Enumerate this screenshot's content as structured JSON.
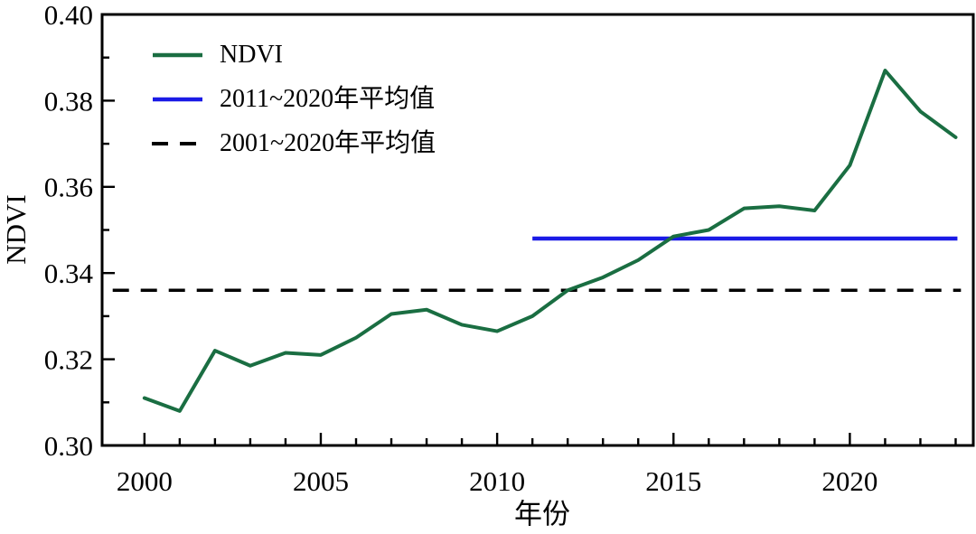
{
  "chart_data": {
    "type": "line",
    "title": "",
    "xlabel": "年份",
    "ylabel": "NDVI",
    "xlim": [
      1998.8,
      2023.5
    ],
    "ylim": [
      0.3,
      0.4
    ],
    "xticks": [
      2000,
      2005,
      2010,
      2015,
      2020
    ],
    "yticks": [
      0.3,
      0.32,
      0.34,
      0.36,
      0.38,
      0.4
    ],
    "x_minor_step": 1,
    "y_minor_step": 0.01,
    "grid": false,
    "legend_position": "upper-left-inside",
    "background_color": "#ffffff",
    "axis_color": "#000000",
    "x": [
      2000,
      2001,
      2002,
      2003,
      2004,
      2005,
      2006,
      2007,
      2008,
      2009,
      2010,
      2011,
      2012,
      2013,
      2014,
      2015,
      2016,
      2017,
      2018,
      2019,
      2020,
      2021,
      2022,
      2023
    ],
    "series": [
      {
        "name": "NDVI",
        "color": "#1a6e42",
        "values": [
          0.311,
          0.308,
          0.322,
          0.3185,
          0.3215,
          0.321,
          0.325,
          0.3305,
          0.3315,
          0.328,
          0.3265,
          0.33,
          0.336,
          0.339,
          0.343,
          0.3485,
          0.35,
          0.355,
          0.3555,
          0.3545,
          0.365,
          0.387,
          0.3775,
          0.3715
        ]
      }
    ],
    "reference_lines": [
      {
        "label": "2011~2020年平均值",
        "value": 0.348,
        "x_start": 2011.0,
        "x_end": 2023.05,
        "color": "#1a1ae6",
        "style": "solid"
      },
      {
        "label": "2001~2020年平均值",
        "value": 0.336,
        "x_start": 1999.1,
        "x_end": 2023.15,
        "color": "#000000",
        "style": "dashed"
      }
    ],
    "legend": [
      {
        "label": "NDVI",
        "color": "#1a6e42",
        "style": "solid"
      },
      {
        "label": "2011~2020年平均值",
        "color": "#1a1ae6",
        "style": "solid"
      },
      {
        "label": "2001~2020年平均值",
        "color": "#000000",
        "style": "dashed"
      }
    ]
  }
}
